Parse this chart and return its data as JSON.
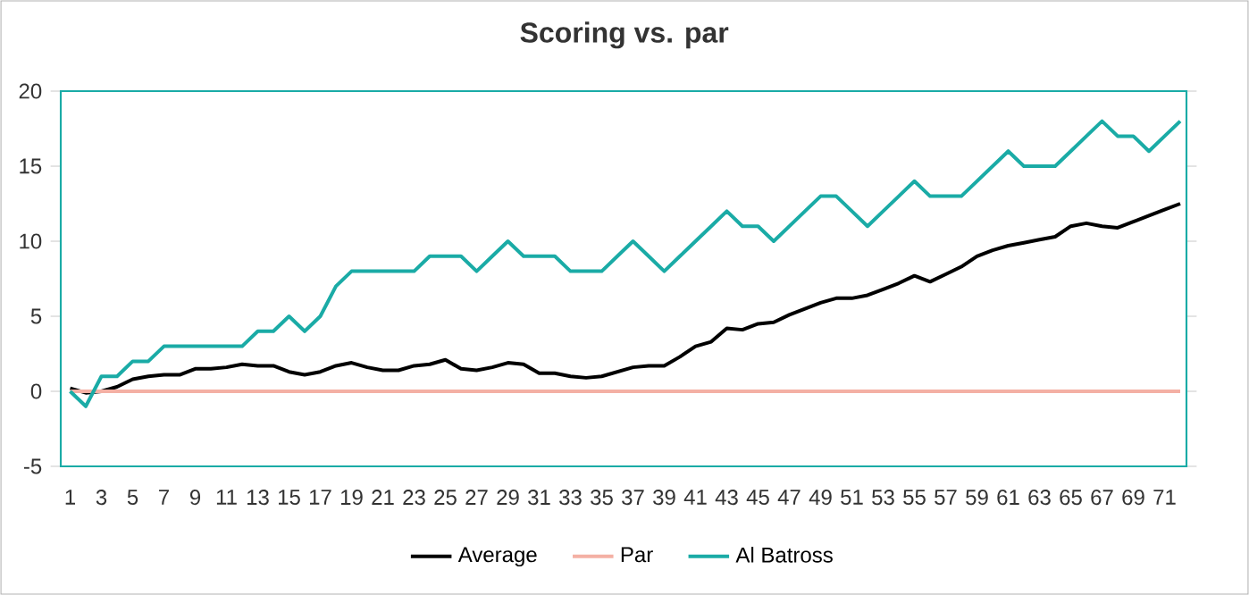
{
  "chart_data": {
    "type": "line",
    "title": "Scoring vs. par",
    "categories": [
      "1",
      null,
      "3",
      null,
      "5",
      null,
      "7",
      null,
      "9",
      null,
      "11",
      null,
      "13",
      null,
      "15",
      null,
      "17",
      null,
      "19",
      null,
      "21",
      null,
      "23",
      null,
      "25",
      null,
      "27",
      null,
      "29",
      null,
      "31",
      null,
      "33",
      null,
      "35",
      null,
      "37",
      null,
      "39",
      null,
      "41",
      null,
      "43",
      null,
      "45",
      null,
      "47",
      null,
      "49",
      null,
      "51",
      null,
      "53",
      null,
      "55",
      null,
      "57",
      null,
      "59",
      null,
      "61",
      null,
      "63",
      null,
      "65",
      null,
      "67",
      null,
      "69",
      null,
      "71",
      null
    ],
    "series": [
      {
        "name": "Average",
        "color": "#000000",
        "values": [
          0.2,
          -0.1,
          0.0,
          0.3,
          0.8,
          1.0,
          1.1,
          1.1,
          1.5,
          1.5,
          1.6,
          1.8,
          1.7,
          1.7,
          1.3,
          1.1,
          1.3,
          1.7,
          1.9,
          1.6,
          1.4,
          1.4,
          1.7,
          1.8,
          2.1,
          1.5,
          1.4,
          1.6,
          1.9,
          1.8,
          1.2,
          1.2,
          1.0,
          0.9,
          1.0,
          1.3,
          1.6,
          1.7,
          1.7,
          2.3,
          3.0,
          3.3,
          4.2,
          4.1,
          4.5,
          4.6,
          5.1,
          5.5,
          5.9,
          6.2,
          6.2,
          6.4,
          6.8,
          7.2,
          7.7,
          7.3,
          7.8,
          8.3,
          9.0,
          9.4,
          9.7,
          9.9,
          10.1,
          10.3,
          11.0,
          11.2,
          11.0,
          10.9,
          11.3,
          11.7,
          12.1,
          12.5
        ]
      },
      {
        "name": "Par",
        "color": "#f4b0a4",
        "values": [
          0,
          0,
          0,
          0,
          0,
          0,
          0,
          0,
          0,
          0,
          0,
          0,
          0,
          0,
          0,
          0,
          0,
          0,
          0,
          0,
          0,
          0,
          0,
          0,
          0,
          0,
          0,
          0,
          0,
          0,
          0,
          0,
          0,
          0,
          0,
          0,
          0,
          0,
          0,
          0,
          0,
          0,
          0,
          0,
          0,
          0,
          0,
          0,
          0,
          0,
          0,
          0,
          0,
          0,
          0,
          0,
          0,
          0,
          0,
          0,
          0,
          0,
          0,
          0,
          0,
          0,
          0,
          0,
          0,
          0,
          0,
          0
        ]
      },
      {
        "name": "Al Batross",
        "color": "#1aaba6",
        "values": [
          0,
          -1,
          1,
          1,
          2,
          2,
          3,
          3,
          3,
          3,
          3,
          3,
          4,
          4,
          5,
          4,
          5,
          7,
          8,
          8,
          8,
          8,
          8,
          9,
          9,
          9,
          8,
          9,
          10,
          9,
          9,
          9,
          8,
          8,
          8,
          9,
          10,
          9,
          8,
          9,
          10,
          11,
          12,
          11,
          11,
          10,
          11,
          12,
          13,
          13,
          12,
          11,
          12,
          13,
          14,
          13,
          13,
          13,
          14,
          15,
          16,
          15,
          15,
          15,
          16,
          17,
          18,
          17,
          17,
          16,
          17,
          18
        ]
      }
    ],
    "ylim": [
      -5,
      20
    ],
    "yticks": [
      -5,
      0,
      5,
      10,
      15,
      20
    ],
    "legend": "bottom",
    "line_style": "solid"
  }
}
